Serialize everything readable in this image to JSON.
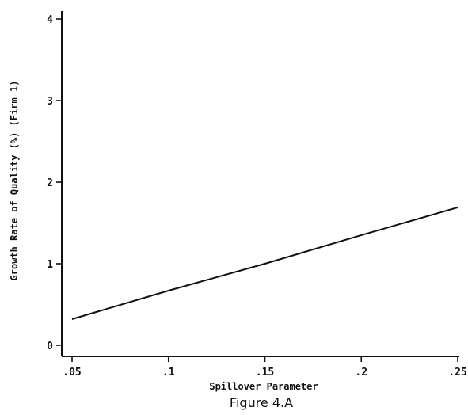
{
  "chart_data": {
    "type": "line",
    "title": "",
    "xlabel": "Spillover Parameter",
    "ylabel": "Growth Rate of Quality (%) (Firm 1)",
    "caption": "Figure 4.A",
    "xlim": [
      0.05,
      0.25
    ],
    "ylim": [
      0,
      4
    ],
    "x_ticks": [
      ".05",
      ".1",
      ".15",
      ".2",
      ".25"
    ],
    "y_ticks": [
      "0",
      "1",
      "2",
      "3",
      "4"
    ],
    "grid": false,
    "series": [
      {
        "x": [
          0.05,
          0.1,
          0.15,
          0.2,
          0.25
        ],
        "values": [
          0.32,
          0.67,
          1.0,
          1.35,
          1.69
        ],
        "color": "#111111"
      }
    ]
  }
}
